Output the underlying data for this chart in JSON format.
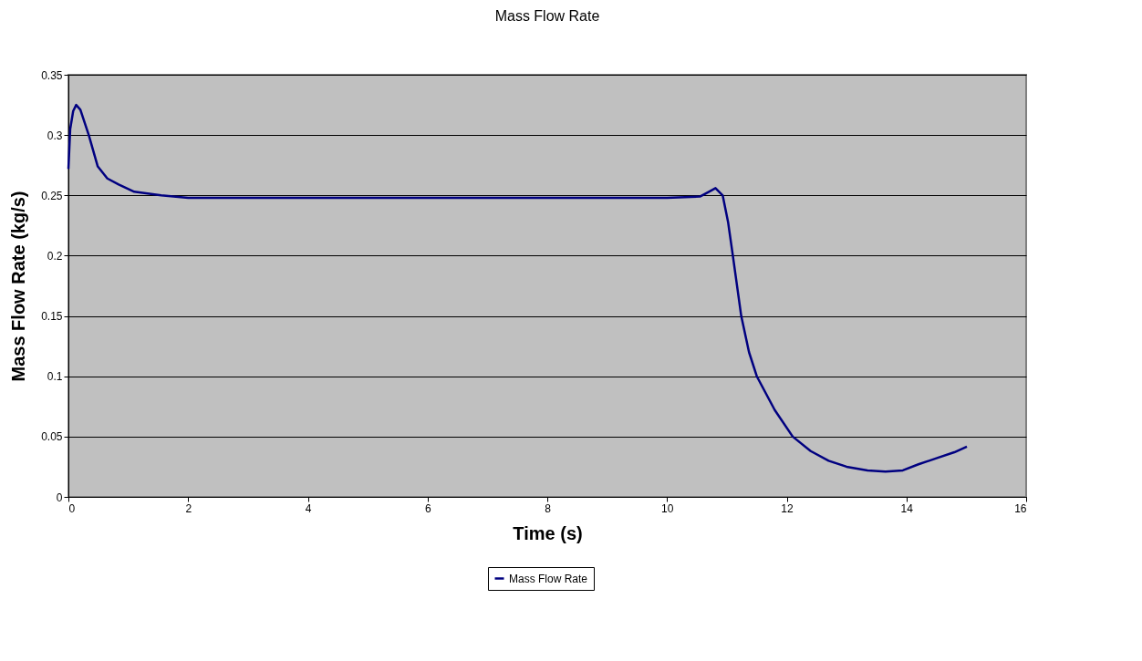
{
  "chart_data": {
    "type": "line",
    "title": "Mass Flow Rate",
    "xlabel": "Time (s)",
    "ylabel": "Mass Flow Rate (kg/s)",
    "x": [
      0,
      0.03,
      0.08,
      0.13,
      0.2,
      0.34,
      0.49,
      0.65,
      0.84,
      1.1,
      1.55,
      2.0,
      3,
      4,
      5,
      6,
      7,
      8,
      9,
      10,
      10.55,
      10.7,
      10.81,
      10.93,
      11.02,
      11.1,
      11.24,
      11.37,
      11.5,
      11.8,
      12.1,
      12.4,
      12.7,
      13.0,
      13.35,
      13.65,
      13.94,
      14.2,
      14.5,
      14.8,
      15.01
    ],
    "series": [
      {
        "name": "Mass Flow Rate",
        "color": "#000080",
        "values": [
          0.272,
          0.305,
          0.32,
          0.325,
          0.321,
          0.3,
          0.274,
          0.264,
          0.259,
          0.253,
          0.25,
          0.248,
          0.248,
          0.248,
          0.248,
          0.248,
          0.248,
          0.248,
          0.248,
          0.248,
          0.249,
          0.253,
          0.256,
          0.25,
          0.228,
          0.2,
          0.15,
          0.12,
          0.1,
          0.072,
          0.05,
          0.038,
          0.03,
          0.025,
          0.022,
          0.021,
          0.022,
          0.027,
          0.032,
          0.037,
          0.0416
        ]
      }
    ],
    "xlim": [
      0,
      16
    ],
    "xticks": [
      0,
      2,
      4,
      6,
      8,
      10,
      12,
      14,
      16
    ],
    "ylim": [
      0,
      0.35
    ],
    "yticks": [
      {
        "value": 0,
        "label": "0"
      },
      0.05,
      {
        "value": 0.1,
        "label": "0.1"
      },
      0.15,
      {
        "value": 0.2,
        "label": "0.2"
      },
      0.25,
      {
        "value": 0.3,
        "label": "0.3"
      },
      0.35
    ],
    "grid": "y",
    "legend": "bottom",
    "marker": "none",
    "line_style": "solid"
  }
}
